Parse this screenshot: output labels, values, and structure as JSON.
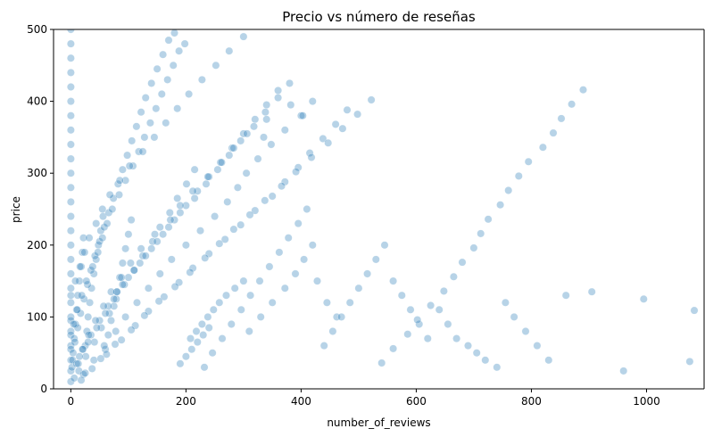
{
  "chart_data": {
    "type": "scatter",
    "title": "Precio vs número de reseñas",
    "xlabel": "number_of_reviews",
    "ylabel": "price",
    "xlim": [
      -30,
      1100
    ],
    "ylim": [
      0,
      500
    ],
    "xticks": [
      0,
      200,
      400,
      600,
      800,
      1000
    ],
    "yticks": [
      0,
      100,
      200,
      300,
      400,
      500
    ],
    "grid": false,
    "series_color": "#1f77b4",
    "series": [
      {
        "name": "",
        "x": [
          0,
          0,
          0,
          0,
          0,
          0,
          0,
          0,
          0,
          0,
          0,
          0,
          0,
          0,
          0,
          0,
          0,
          0,
          0,
          0,
          0,
          0,
          0,
          0,
          0,
          0,
          0,
          0,
          0,
          0,
          2,
          4,
          6,
          8,
          10,
          12,
          15,
          18,
          20,
          22,
          25,
          28,
          30,
          33,
          36,
          40,
          44,
          48,
          52,
          56,
          60,
          65,
          70,
          75,
          80,
          85,
          90,
          95,
          100,
          105,
          3,
          7,
          12,
          17,
          23,
          29,
          35,
          42,
          50,
          58,
          66,
          74,
          82,
          90,
          98,
          106,
          114,
          122,
          130,
          140,
          150,
          160,
          170,
          180,
          190,
          200,
          210,
          220,
          230,
          240,
          5,
          11,
          19,
          27,
          38,
          47,
          55,
          63,
          72,
          84,
          95,
          108,
          118,
          128,
          138,
          148,
          158,
          168,
          178,
          188,
          198,
          208,
          218,
          228,
          238,
          248,
          258,
          270,
          285,
          300,
          14,
          26,
          41,
          53,
          67,
          79,
          93,
          110,
          125,
          142,
          155,
          172,
          185,
          201,
          215,
          232,
          246,
          263,
          279,
          296,
          312,
          328,
          345,
          362,
          378,
          395,
          410,
          428,
          445,
          462,
          310,
          330,
          350,
          372,
          390,
          405,
          420,
          440,
          455,
          470,
          485,
          500,
          515,
          530,
          545,
          560,
          575,
          590,
          605,
          620,
          640,
          655,
          670,
          690,
          705,
          720,
          740,
          755,
          770,
          790,
          810,
          830,
          860,
          905,
          960,
          995,
          1075,
          1083,
          10,
          20,
          35,
          50,
          65,
          80,
          100,
          120,
          140,
          160,
          180,
          200,
          220,
          240,
          260,
          280,
          300,
          320,
          340,
          360,
          15,
          30,
          45,
          60,
          75,
          90,
          110,
          130,
          150,
          170,
          190,
          215,
          235,
          255,
          275,
          295,
          318,
          338,
          360,
          380,
          22,
          40,
          58,
          78,
          95,
          115,
          135,
          155,
          175,
          200,
          225,
          250,
          272,
          290,
          305,
          325,
          348,
          372,
          400,
          420,
          8,
          16,
          24,
          32,
          44,
          55,
          68,
          85,
          102,
          125,
          145,
          165,
          185,
          205,
          228,
          252,
          275,
          300,
          335,
          382,
          6,
          13,
          21,
          31,
          43,
          57,
          70,
          88,
          104,
          122,
          146,
          173,
          190,
          212,
          238,
          262,
          283,
          306,
          340,
          403,
          18,
          37,
          62,
          88,
          112,
          135,
          162,
          188,
          212,
          240,
          268,
          295,
          320,
          350,
          372,
          395,
          415,
          438,
          460,
          480,
          25,
          52,
          77,
          105,
          128,
          153,
          181,
          207,
          233,
          258,
          283,
          311,
          337,
          366,
          391,
          418,
          447,
          472,
          498,
          522,
          540,
          560,
          585,
          602,
          625,
          648,
          665,
          680,
          700,
          712,
          725,
          746,
          760,
          778,
          795,
          820,
          838,
          852,
          870,
          890
        ],
        "y": [
          10,
          25,
          40,
          60,
          80,
          100,
          120,
          140,
          160,
          180,
          200,
          220,
          240,
          260,
          280,
          300,
          320,
          340,
          360,
          380,
          400,
          420,
          440,
          460,
          480,
          500,
          55,
          75,
          95,
          130,
          30,
          50,
          70,
          90,
          110,
          130,
          150,
          170,
          190,
          210,
          60,
          80,
          100,
          120,
          140,
          160,
          180,
          200,
          220,
          240,
          55,
          75,
          95,
          115,
          135,
          155,
          175,
          195,
          215,
          235,
          40,
          65,
          85,
          105,
          125,
          145,
          165,
          185,
          205,
          225,
          245,
          265,
          285,
          305,
          325,
          345,
          365,
          385,
          405,
          425,
          445,
          465,
          485,
          495,
          35,
          45,
          55,
          65,
          75,
          85,
          90,
          110,
          130,
          150,
          170,
          190,
          210,
          230,
          250,
          270,
          290,
          310,
          330,
          350,
          370,
          390,
          410,
          430,
          450,
          470,
          480,
          70,
          80,
          90,
          100,
          110,
          120,
          130,
          140,
          150,
          25,
          45,
          65,
          85,
          105,
          125,
          145,
          165,
          185,
          205,
          225,
          245,
          265,
          285,
          305,
          30,
          50,
          70,
          90,
          110,
          130,
          150,
          170,
          190,
          210,
          230,
          250,
          150,
          120,
          100,
          80,
          100,
          120,
          140,
          160,
          180,
          200,
          60,
          80,
          100,
          120,
          140,
          160,
          180,
          200,
          150,
          130,
          110,
          90,
          70,
          110,
          90,
          70,
          60,
          50,
          40,
          30,
          120,
          100,
          80,
          60,
          40,
          130,
          135,
          25,
          125,
          38,
          109,
          35,
          55,
          75,
          95,
          115,
          135,
          155,
          175,
          195,
          215,
          235,
          255,
          275,
          295,
          315,
          335,
          355,
          375,
          395,
          415,
          45,
          65,
          85,
          105,
          125,
          145,
          165,
          185,
          205,
          225,
          245,
          265,
          285,
          305,
          325,
          345,
          365,
          385,
          405,
          425,
          20,
          40,
          60,
          80,
          100,
          120,
          140,
          160,
          180,
          200,
          220,
          240,
          260,
          280,
          300,
          320,
          340,
          360,
          380,
          400,
          150,
          170,
          190,
          210,
          230,
          250,
          270,
          290,
          310,
          330,
          350,
          370,
          390,
          410,
          430,
          450,
          470,
          490,
          350,
          395,
          15,
          35,
          55,
          75,
          95,
          115,
          135,
          155,
          175,
          195,
          215,
          235,
          255,
          275,
          295,
          315,
          335,
          355,
          375,
          380,
          12,
          28,
          48,
          68,
          88,
          108,
          128,
          148,
          168,
          188,
          208,
          228,
          248,
          268,
          288,
          308,
          328,
          348,
          368,
          388,
          22,
          42,
          62,
          82,
          102,
          122,
          142,
          162,
          182,
          202,
          222,
          242,
          262,
          282,
          302,
          322,
          342,
          362,
          382,
          402,
          36,
          56,
          76,
          96,
          116,
          136,
          156,
          176,
          196,
          216,
          236,
          256,
          276,
          296,
          316,
          336,
          356,
          376,
          396,
          416
        ]
      }
    ]
  }
}
